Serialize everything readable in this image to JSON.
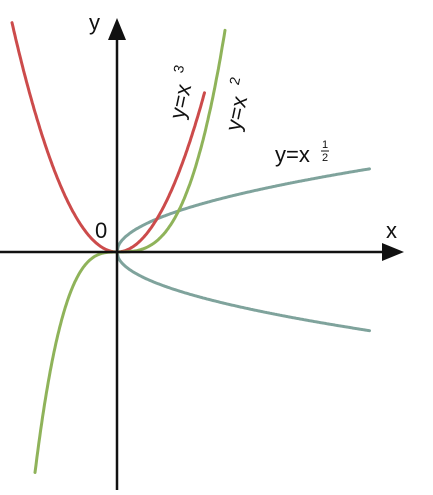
{
  "axes": {
    "x_label": "x",
    "y_label": "y",
    "origin_label": "0"
  },
  "curves": [
    {
      "base": "y=x",
      "exponent": "3"
    },
    {
      "base": "y=x",
      "exponent": "2"
    },
    {
      "base": "y=x",
      "numerator": "1",
      "denominator": "2"
    }
  ]
}
